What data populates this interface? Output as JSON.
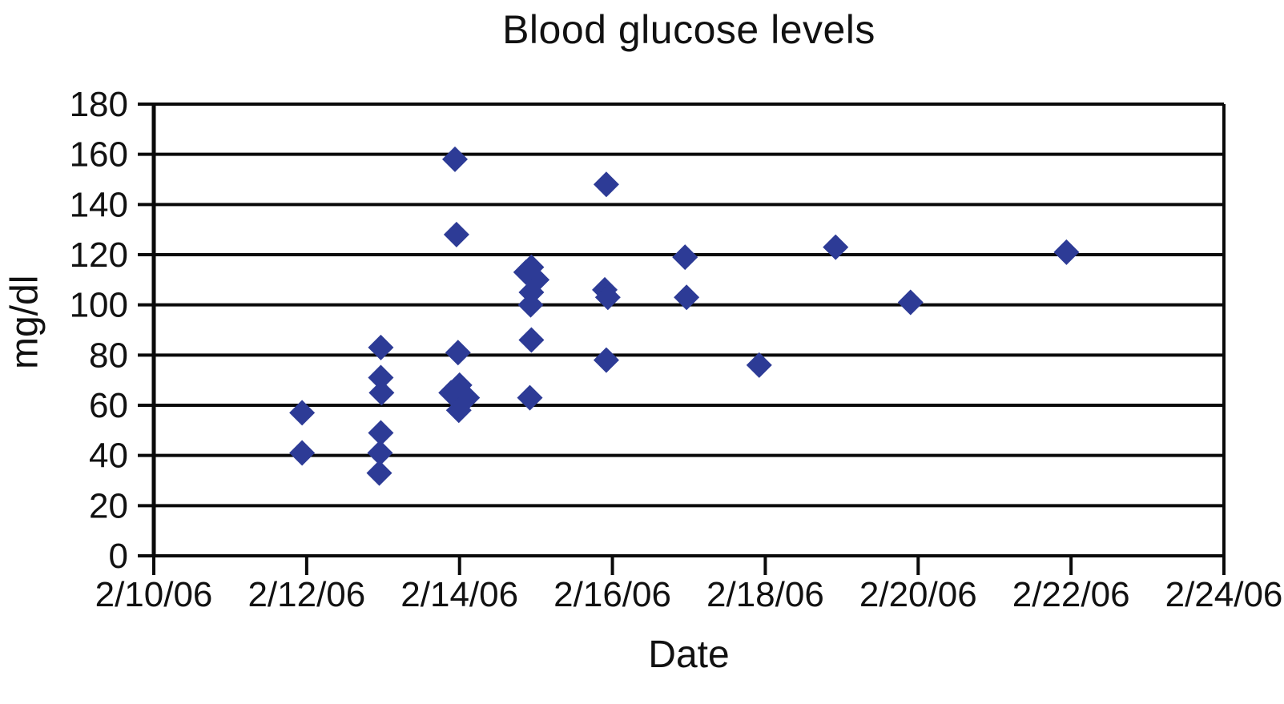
{
  "page_title": "Blood glucose levels",
  "chart_data": {
    "type": "scatter",
    "title": "Blood glucose levels",
    "xlabel": "Date",
    "ylabel": "mg/dl",
    "marker": "diamond",
    "marker_color": "#2d3b96",
    "axis_color": "#0a0a0a",
    "background_color": "#ffffff",
    "grid": "horizontal",
    "ylim": [
      0,
      180
    ],
    "y_tick_step": 20,
    "y_ticks": [
      180,
      160,
      140,
      120,
      100,
      80,
      60,
      40,
      20,
      0
    ],
    "x_tick_labels": [
      "2/10/06",
      "2/12/06",
      "2/14/06",
      "2/16/06",
      "2/18/06",
      "2/20/06",
      "2/22/06",
      "2/24/06"
    ],
    "x_axis_span_days": 14,
    "x_days_per_tick": 2,
    "legend": "none",
    "points": [
      {
        "date": "2/12/06",
        "day": 1.94,
        "mg_dl": 57
      },
      {
        "date": "2/12/06",
        "day": 1.94,
        "mg_dl": 41
      },
      {
        "date": "2/13/06",
        "day": 2.97,
        "mg_dl": 83
      },
      {
        "date": "2/13/06",
        "day": 2.97,
        "mg_dl": 71
      },
      {
        "date": "2/13/06",
        "day": 2.98,
        "mg_dl": 65
      },
      {
        "date": "2/13/06",
        "day": 2.97,
        "mg_dl": 49
      },
      {
        "date": "2/13/06",
        "day": 2.96,
        "mg_dl": 41
      },
      {
        "date": "2/13/06",
        "day": 2.95,
        "mg_dl": 33
      },
      {
        "date": "2/14/06",
        "day": 3.94,
        "mg_dl": 158
      },
      {
        "date": "2/14/06",
        "day": 3.96,
        "mg_dl": 128
      },
      {
        "date": "2/14/06",
        "day": 3.98,
        "mg_dl": 81
      },
      {
        "date": "2/14/06",
        "day": 4.0,
        "mg_dl": 68
      },
      {
        "date": "2/14/06",
        "day": 3.89,
        "mg_dl": 65
      },
      {
        "date": "2/14/06",
        "day": 4.1,
        "mg_dl": 63
      },
      {
        "date": "2/14/06",
        "day": 3.99,
        "mg_dl": 58
      },
      {
        "date": "2/15/06",
        "day": 4.94,
        "mg_dl": 115
      },
      {
        "date": "2/15/06",
        "day": 4.87,
        "mg_dl": 113
      },
      {
        "date": "2/15/06",
        "day": 5.01,
        "mg_dl": 110
      },
      {
        "date": "2/15/06",
        "day": 4.94,
        "mg_dl": 105
      },
      {
        "date": "2/15/06",
        "day": 4.93,
        "mg_dl": 100
      },
      {
        "date": "2/15/06",
        "day": 4.94,
        "mg_dl": 86
      },
      {
        "date": "2/15/06",
        "day": 4.92,
        "mg_dl": 63
      },
      {
        "date": "2/16/06",
        "day": 5.92,
        "mg_dl": 148
      },
      {
        "date": "2/16/06",
        "day": 5.9,
        "mg_dl": 106
      },
      {
        "date": "2/16/06",
        "day": 5.94,
        "mg_dl": 103
      },
      {
        "date": "2/16/06",
        "day": 5.92,
        "mg_dl": 78
      },
      {
        "date": "2/17/06",
        "day": 6.95,
        "mg_dl": 119
      },
      {
        "date": "2/17/06",
        "day": 6.97,
        "mg_dl": 103
      },
      {
        "date": "2/18/06",
        "day": 7.92,
        "mg_dl": 76
      },
      {
        "date": "2/19/06",
        "day": 8.92,
        "mg_dl": 123
      },
      {
        "date": "2/20/06",
        "day": 9.9,
        "mg_dl": 101
      },
      {
        "date": "2/22/06",
        "day": 11.94,
        "mg_dl": 121
      }
    ]
  }
}
